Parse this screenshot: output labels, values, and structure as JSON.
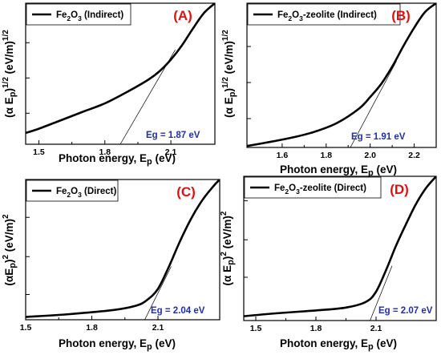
{
  "chart_data": [
    {
      "type": "line",
      "panel": "(A)",
      "legend": "Fe2O3  (Indirect)",
      "legend_parts": [
        [
          "Fe",
          ""
        ],
        [
          "2",
          "sub"
        ],
        [
          "O",
          ""
        ],
        [
          "3",
          "sub"
        ],
        [
          "  (Indirect)",
          ""
        ]
      ],
      "band_gap_label": "Eg = 1.87 eV",
      "xlabel": "Photon energy, Ep (eV)",
      "ylabel": "(α Ep)^1/2 (eV/m)^1/2",
      "xlim": [
        1.44,
        2.3
      ],
      "ylim": [
        0,
        1
      ],
      "xticks": [
        1.5,
        1.8,
        2.1
      ],
      "xticklabels": [
        "1.5",
        "1.8",
        "2.1"
      ],
      "yticks": [
        0.22,
        0.47,
        0.72,
        0.97
      ],
      "series": [
        {
          "x": [
            1.44,
            1.5,
            1.6,
            1.7,
            1.8,
            1.9,
            2.0,
            2.05,
            2.1,
            2.15,
            2.2,
            2.25,
            2.3
          ],
          "y": [
            0.08,
            0.11,
            0.17,
            0.23,
            0.29,
            0.37,
            0.46,
            0.52,
            0.6,
            0.7,
            0.82,
            0.93,
            1.0
          ]
        }
      ],
      "tangent": {
        "x": [
          1.87,
          2.12
        ],
        "y": [
          0.0,
          0.67
        ]
      }
    },
    {
      "type": "line",
      "panel": "(B)",
      "legend": "Fe2O3-zeolite  (Indirect)",
      "legend_parts": [
        [
          "Fe",
          ""
        ],
        [
          "2",
          "sub"
        ],
        [
          "O",
          ""
        ],
        [
          "3",
          "sub"
        ],
        [
          "-zeolite  (Indirect)",
          ""
        ]
      ],
      "band_gap_label": "Eg = 1.91 eV",
      "xlabel": "Photon energy, Ep (eV)",
      "ylabel": "(α Ep)^1/2 (eV/m)^1/2",
      "xlim": [
        1.44,
        2.3
      ],
      "ylim": [
        0,
        1
      ],
      "xticks": [
        1.6,
        1.8,
        2.0,
        2.2
      ],
      "xticklabels": [
        "1.6",
        "1.8",
        "2.0",
        "2.2"
      ],
      "yticks": [
        0.2,
        0.45,
        0.7,
        0.95
      ],
      "series": [
        {
          "x": [
            1.44,
            1.55,
            1.65,
            1.75,
            1.85,
            1.95,
            2.0,
            2.05,
            2.1,
            2.15,
            2.2,
            2.25,
            2.3
          ],
          "y": [
            0.01,
            0.04,
            0.07,
            0.11,
            0.17,
            0.27,
            0.35,
            0.44,
            0.56,
            0.7,
            0.83,
            0.94,
            1.0
          ]
        }
      ],
      "tangent": {
        "x": [
          1.91,
          2.12
        ],
        "y": [
          0.0,
          0.6
        ]
      }
    },
    {
      "type": "line",
      "panel": "(C)",
      "legend": "Fe2O3  (Direct)",
      "legend_parts": [
        [
          "Fe",
          ""
        ],
        [
          "2",
          "sub"
        ],
        [
          "O",
          ""
        ],
        [
          "3",
          "sub"
        ],
        [
          "  (Direct)",
          ""
        ]
      ],
      "band_gap_label": "Eg = 2.04 eV",
      "xlabel": "Photon energy, Ep (eV)",
      "ylabel": "(αEp)^2 (eV/m)^2",
      "xlim": [
        1.5,
        2.38
      ],
      "ylim": [
        0,
        1
      ],
      "xticks": [
        1.5,
        1.8,
        2.1
      ],
      "xticklabels": [
        "1.5",
        "1.8",
        "2.1"
      ],
      "yticks": [
        0.18,
        0.45,
        0.73
      ],
      "series": [
        {
          "x": [
            1.5,
            1.7,
            1.9,
            2.0,
            2.05,
            2.1,
            2.15,
            2.2,
            2.25,
            2.3,
            2.35,
            2.38
          ],
          "y": [
            0.02,
            0.04,
            0.07,
            0.1,
            0.14,
            0.22,
            0.38,
            0.56,
            0.72,
            0.85,
            0.95,
            1.0
          ]
        }
      ],
      "tangent": {
        "x": [
          2.04,
          2.16
        ],
        "y": [
          0.0,
          0.38
        ]
      }
    },
    {
      "type": "line",
      "panel": "(D)",
      "legend": "Fe2O3-zeolite (Direct)",
      "legend_parts": [
        [
          "Fe",
          ""
        ],
        [
          "2",
          "sub"
        ],
        [
          "O",
          ""
        ],
        [
          "3",
          "sub"
        ],
        [
          "-zeolite (Direct)",
          ""
        ]
      ],
      "band_gap_label": "Eg = 2.07 eV",
      "xlabel": "Photon energy, Ep (eV)",
      "ylabel": "(α Ep)^2 (eV/m)^2",
      "xlim": [
        1.44,
        2.4
      ],
      "ylim": [
        0,
        1
      ],
      "xticks": [
        1.5,
        1.8,
        2.1
      ],
      "xticklabels": [
        "1.5",
        "1.8",
        "2.1"
      ],
      "yticks": [
        0.3,
        0.56,
        0.83
      ],
      "series": [
        {
          "x": [
            1.44,
            1.6,
            1.8,
            1.95,
            2.05,
            2.1,
            2.15,
            2.2,
            2.25,
            2.3,
            2.35,
            2.4
          ],
          "y": [
            0.03,
            0.05,
            0.07,
            0.09,
            0.13,
            0.2,
            0.35,
            0.52,
            0.67,
            0.81,
            0.92,
            1.0
          ]
        }
      ],
      "tangent": {
        "x": [
          2.07,
          2.18
        ],
        "y": [
          0.0,
          0.38
        ]
      }
    }
  ]
}
